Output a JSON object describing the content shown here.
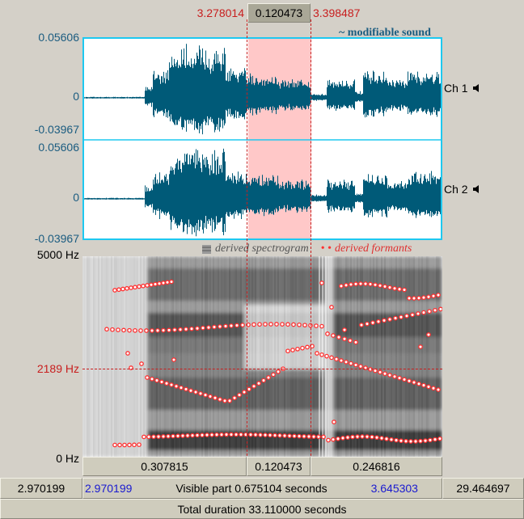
{
  "selection": {
    "start": "3.278014",
    "length": "0.120473",
    "end": "3.398487"
  },
  "waveform": {
    "label": "~ modifiable sound",
    "ch1": {
      "max": "0.05606",
      "zero": "0",
      "min": "-0.03967",
      "name": "Ch 1"
    },
    "ch2": {
      "max": "0.05606",
      "zero": "0",
      "min": "-0.03967",
      "name": "Ch 2"
    }
  },
  "spectrogram": {
    "legend_spectrogram": "derived spectrogram",
    "legend_formants": "derived formants",
    "top_hz": "5000 Hz",
    "cursor_hz": "2189 Hz",
    "bottom_hz": "0 Hz"
  },
  "segments": {
    "left": "0.307815",
    "selected": "0.120473",
    "right": "0.246816"
  },
  "visible": {
    "outer_left": "2.970199",
    "inner_left": "2.970199",
    "text": "Visible part 0.675104 seconds",
    "inner_right": "3.645303",
    "outer_right": "29.464697"
  },
  "total": "Total duration 33.110000 seconds",
  "colors": {
    "wave": "#005a78",
    "frame": "#1ec8f0",
    "selection": "#ffc8c8",
    "cursor": "#c81e1e",
    "formant": "#ff3030",
    "blue_time": "#1a1ad0"
  }
}
